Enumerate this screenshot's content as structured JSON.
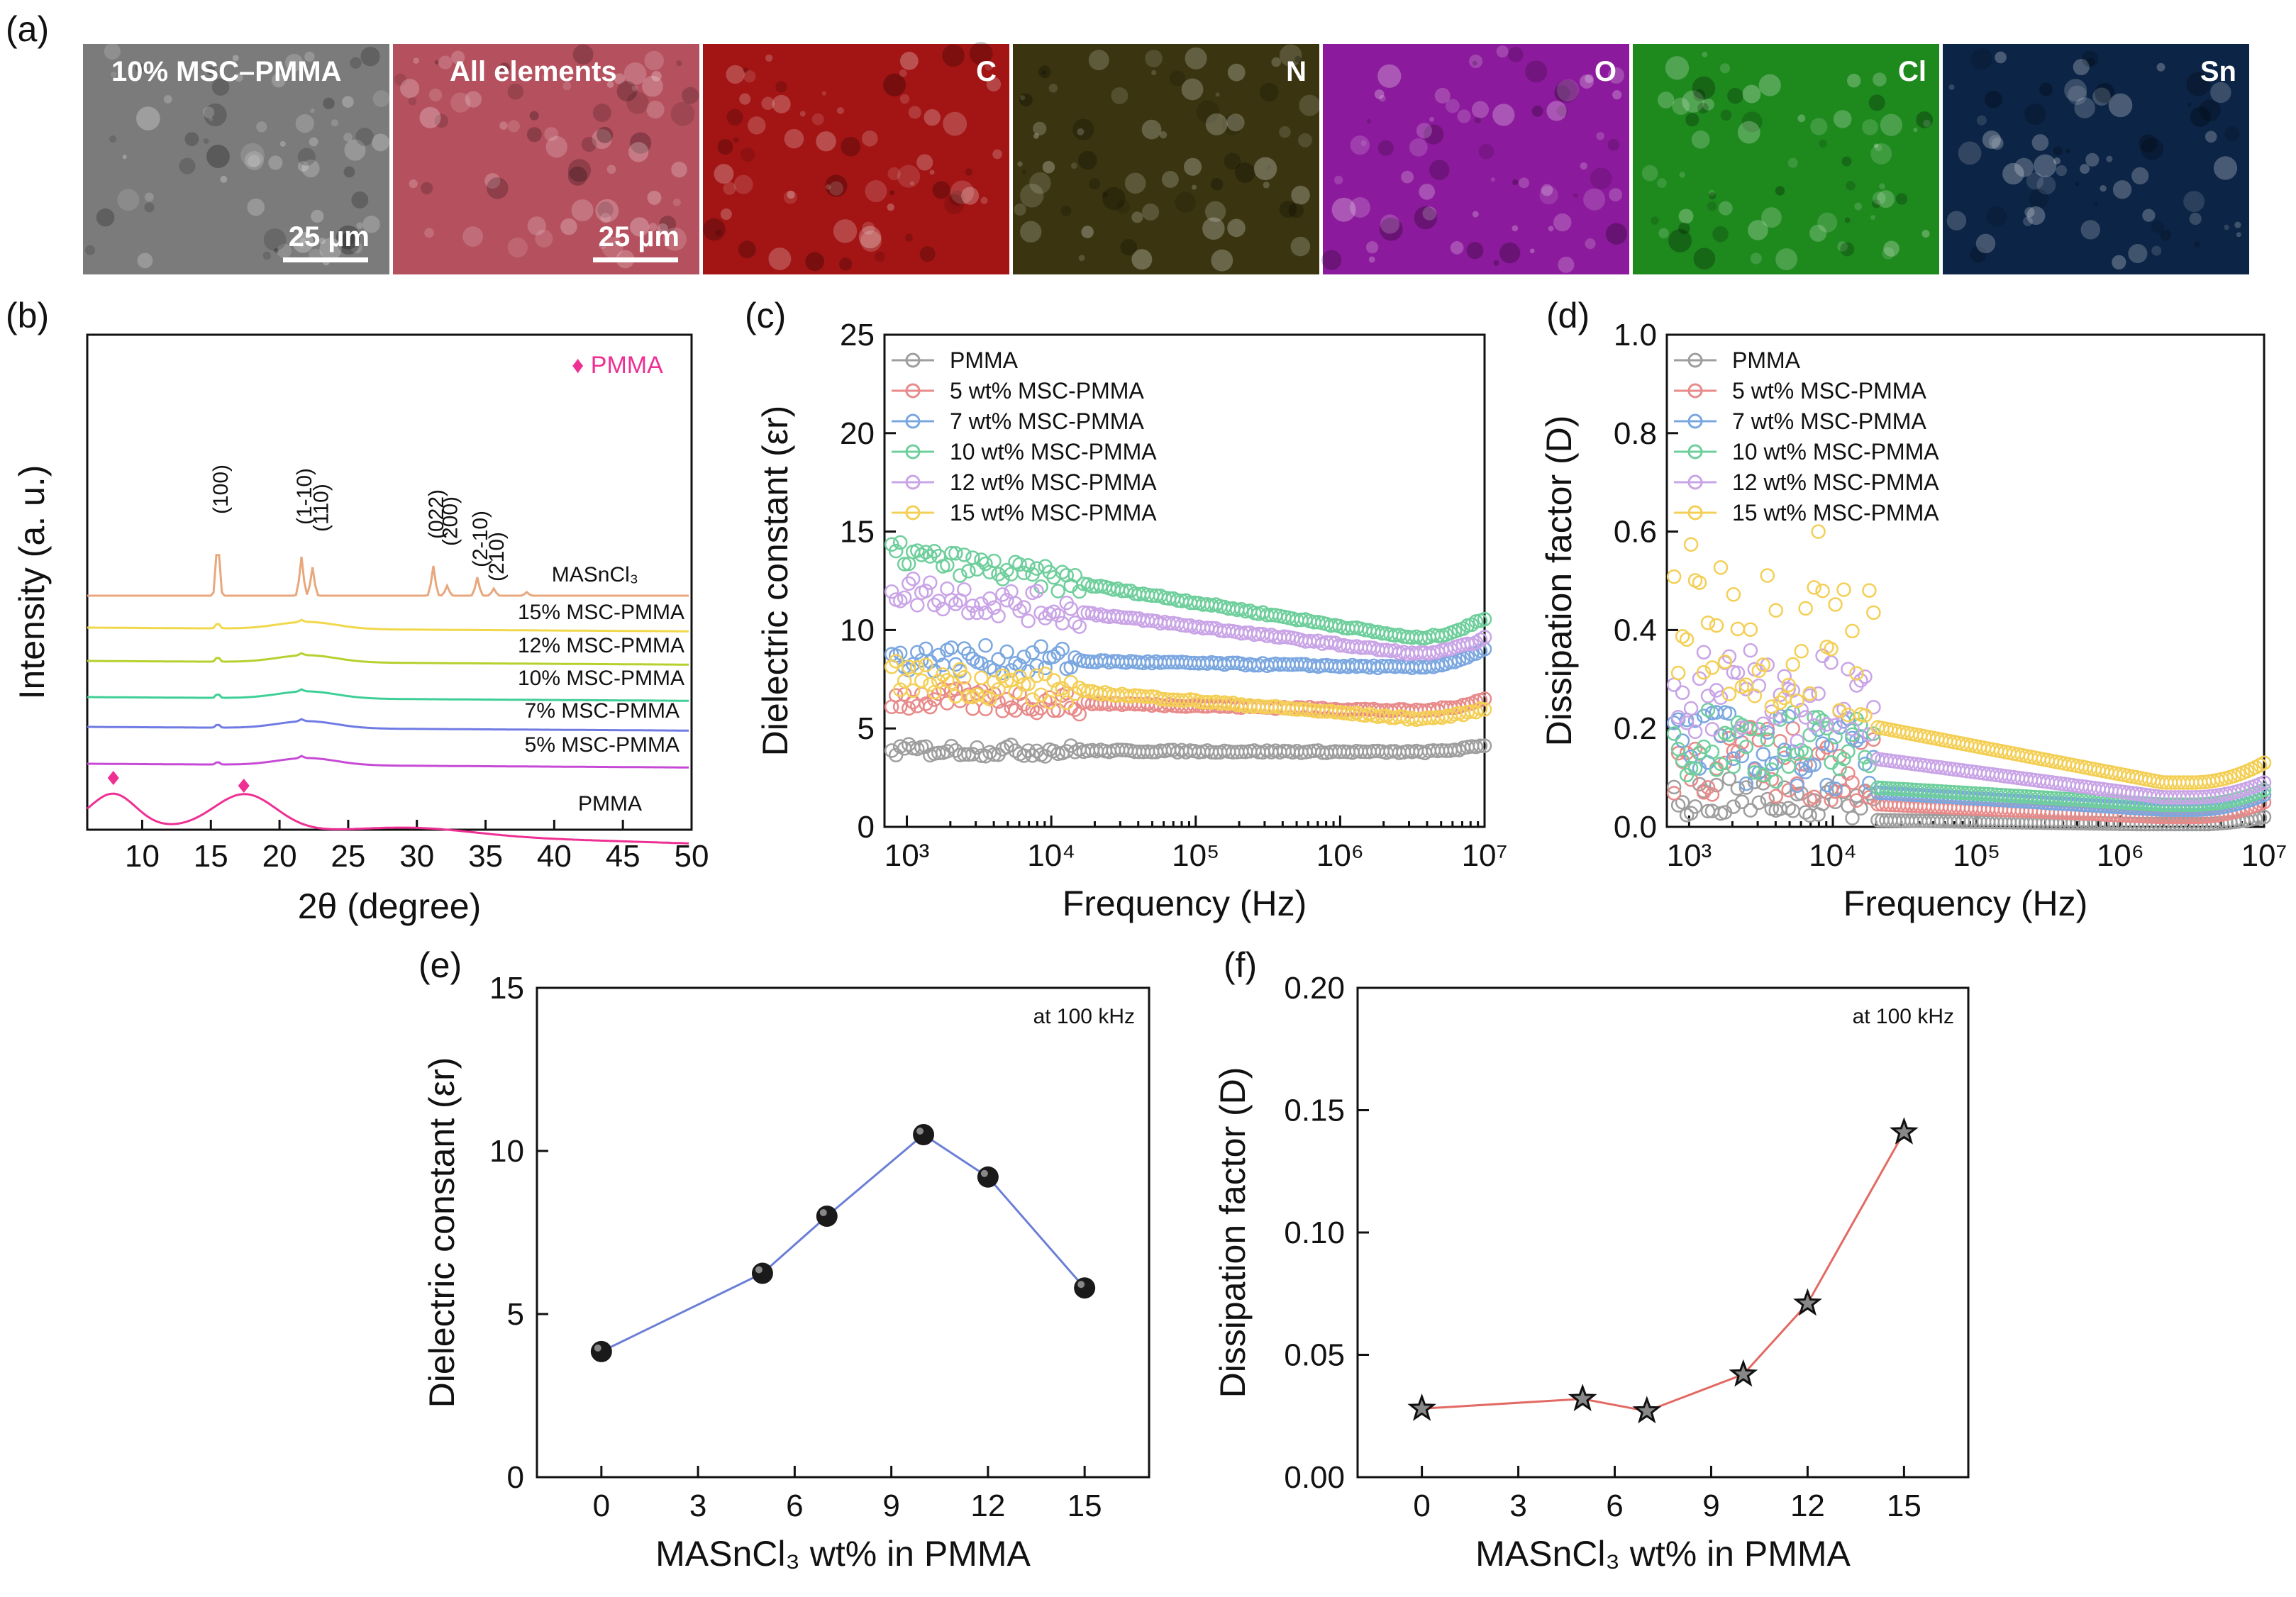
{
  "panel_labels": [
    "(a)",
    "(b)",
    "(c)",
    "(d)",
    "(e)",
    "(f)"
  ],
  "edx": {
    "tiles": [
      {
        "label": "10% MSC–PMMA",
        "color": "#7b7b7b",
        "scale": "25 µm"
      },
      {
        "label": "All elements",
        "color": "#b5505e",
        "scale": "25 µm"
      },
      {
        "label": "C",
        "color": "#a31414",
        "scale": ""
      },
      {
        "label": "N",
        "color": "#3a3510",
        "scale": ""
      },
      {
        "label": "O",
        "color": "#8c1a9c",
        "scale": ""
      },
      {
        "label": "Cl",
        "color": "#1e8a1e",
        "scale": ""
      },
      {
        "label": "Sn",
        "color": "#0c2445",
        "scale": ""
      }
    ]
  },
  "chart_data": [
    {
      "id": "b",
      "type": "line",
      "xlabel": "2θ (degree)",
      "ylabel": "Intensity (a. u.)",
      "xlim": [
        6,
        50
      ],
      "xticks": [
        10,
        15,
        20,
        25,
        30,
        35,
        40,
        45,
        50
      ],
      "legend": "♦ PMMA",
      "peak_labels": [
        {
          "label": "(100)",
          "x": 15.5
        },
        {
          "label": "(1-10)",
          "x": 21.6
        },
        {
          "label": "(110)",
          "x": 22.4
        },
        {
          "label": "(022)",
          "x": 31.2
        },
        {
          "label": "(200)",
          "x": 32.2
        },
        {
          "label": "(2-10)",
          "x": 34.4
        },
        {
          "label": "(210)",
          "x": 35.6
        }
      ],
      "pmma_markers": [
        7.9,
        17.4
      ],
      "series": [
        {
          "name": "MASnCl₃",
          "color": "#e8a77c"
        },
        {
          "name": "15% MSC-PMMA",
          "color": "#f1d84a"
        },
        {
          "name": "12% MSC-PMMA",
          "color": "#b4d12e"
        },
        {
          "name": "10% MSC-PMMA",
          "color": "#3ecf96"
        },
        {
          "name": "7% MSC-PMMA",
          "color": "#6f7be3"
        },
        {
          "name": "5% MSC-PMMA",
          "color": "#c64ad6"
        },
        {
          "name": "PMMA",
          "color": "#ee2f93"
        }
      ]
    },
    {
      "id": "c",
      "type": "scatter",
      "xlabel": "Frequency (Hz)",
      "ylabel": "Dielectric constant (εr)",
      "xscale": "log",
      "xlim": [
        700,
        10000000
      ],
      "ylim": [
        0,
        25
      ],
      "yticks": [
        0,
        5,
        10,
        15,
        20,
        25
      ],
      "xticks": [
        "10³",
        "10⁴",
        "10⁵",
        "10⁶",
        "10⁷"
      ],
      "series": [
        {
          "name": "PMMA",
          "color": "#9e9e9e",
          "low": 4.0,
          "high_end": 5.2,
          "noise": 0.3
        },
        {
          "name": "5 wt% MSC-PMMA",
          "color": "#e88a8a",
          "low": 6.8,
          "high_end": 8.5,
          "noise": 0.6
        },
        {
          "name": "7 wt% MSC-PMMA",
          "color": "#7ba7e0",
          "low": 8.8,
          "high_end": 11.5,
          "noise": 0.7
        },
        {
          "name": "10 wt% MSC-PMMA",
          "color": "#6fcf9c",
          "low": 14.0,
          "high_end": 14.0,
          "noise": 0.6
        },
        {
          "name": "12 wt% MSC-PMMA",
          "color": "#c9a4e6",
          "low": 12.2,
          "high_end": 12.5,
          "noise": 0.8
        },
        {
          "name": "15 wt% MSC-PMMA",
          "color": "#f4cf55",
          "low": 7.8,
          "high_end": 8.0,
          "noise": 0.8
        }
      ]
    },
    {
      "id": "d",
      "type": "scatter",
      "xlabel": "Frequency (Hz)",
      "ylabel": "Dissipation factor (D)",
      "xscale": "log",
      "xlim": [
        700,
        10000000
      ],
      "ylim": [
        0,
        1.0
      ],
      "yticks": [
        "0.0",
        "0.2",
        "0.4",
        "0.6",
        "0.8",
        "1.0"
      ],
      "xticks": [
        "10³",
        "10⁴",
        "10⁵",
        "10⁶",
        "10⁷"
      ],
      "series": [
        {
          "name": "PMMA",
          "color": "#9e9e9e"
        },
        {
          "name": "5 wt% MSC-PMMA",
          "color": "#e88a8a"
        },
        {
          "name": "7 wt% MSC-PMMA",
          "color": "#7ba7e0"
        },
        {
          "name": "10 wt% MSC-PMMA",
          "color": "#6fcf9c"
        },
        {
          "name": "12 wt% MSC-PMMA",
          "color": "#c9a4e6"
        },
        {
          "name": "15 wt% MSC-PMMA",
          "color": "#f4cf55"
        }
      ]
    },
    {
      "id": "e",
      "type": "line",
      "annotation": "at 100 kHz",
      "xlabel": "MASnCl₃ wt% in PMMA",
      "ylabel": "Dielectric constant (εr)",
      "xlim": [
        -2,
        17
      ],
      "ylim": [
        0,
        15
      ],
      "xticks": [
        0,
        3,
        6,
        9,
        12,
        15
      ],
      "yticks": [
        0,
        5,
        10,
        15
      ],
      "x": [
        0,
        5,
        7,
        10,
        12,
        15
      ],
      "y": [
        3.85,
        6.25,
        8.0,
        10.5,
        9.2,
        5.8
      ],
      "color": "#6b7fd6"
    },
    {
      "id": "f",
      "type": "line",
      "annotation": "at 100 kHz",
      "xlabel": "MASnCl₃ wt% in PMMA",
      "ylabel": "Dissipation factor (D)",
      "xlim": [
        -2,
        17
      ],
      "ylim": [
        0,
        0.2
      ],
      "xticks": [
        0,
        3,
        6,
        9,
        12,
        15
      ],
      "yticks": [
        "0.00",
        "0.05",
        "0.10",
        "0.15",
        "0.20"
      ],
      "x": [
        0,
        5,
        7,
        10,
        12,
        15
      ],
      "y": [
        0.028,
        0.032,
        0.027,
        0.042,
        0.071,
        0.141
      ],
      "color": "#e26a62"
    }
  ]
}
